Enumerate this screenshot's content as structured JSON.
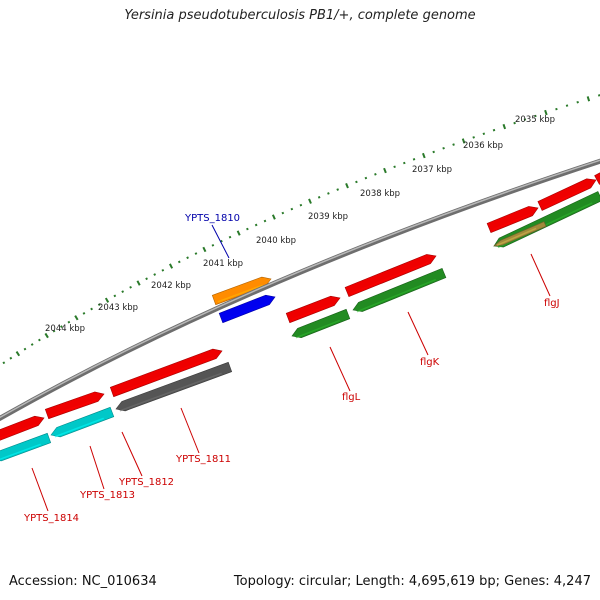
{
  "title": "Yersinia pseudotuberculosis PB1/+, complete genome",
  "footer": {
    "accession": "Accession: NC_010634",
    "summary": "Topology: circular; Length: 4,695,619 bp; Genes: 4,247"
  },
  "colors": {
    "backbone": "#8c8c8c",
    "forward_gene": "#ee0000",
    "scale_dots": "#2a7a2a",
    "cds_orange": "#ff8c00",
    "cds_blue": "#0000ee",
    "cds_green": "#228b22",
    "cds_cyan": "#00c8c8",
    "cds_gray": "#555555",
    "label_red": "#cc0000",
    "label_blue": "#0000aa"
  },
  "scale": {
    "unit": "kbp",
    "ticks": [
      "2035 kbp",
      "2036 kbp",
      "2037 kbp",
      "2038 kbp",
      "2039 kbp",
      "2040 kbp",
      "2041 kbp",
      "2042 kbp",
      "2043 kbp",
      "2044 kbp"
    ]
  },
  "genes": [
    {
      "label": "YPTS_1810",
      "color": "label_blue"
    },
    {
      "label": "YPTS_1811",
      "color": "label_red"
    },
    {
      "label": "YPTS_1812",
      "color": "label_red"
    },
    {
      "label": "YPTS_1813",
      "color": "label_red"
    },
    {
      "label": "YPTS_1814",
      "color": "label_red"
    },
    {
      "label": "flgL",
      "color": "label_red"
    },
    {
      "label": "flgK",
      "color": "label_red"
    },
    {
      "label": "flgJ",
      "color": "label_red"
    }
  ]
}
